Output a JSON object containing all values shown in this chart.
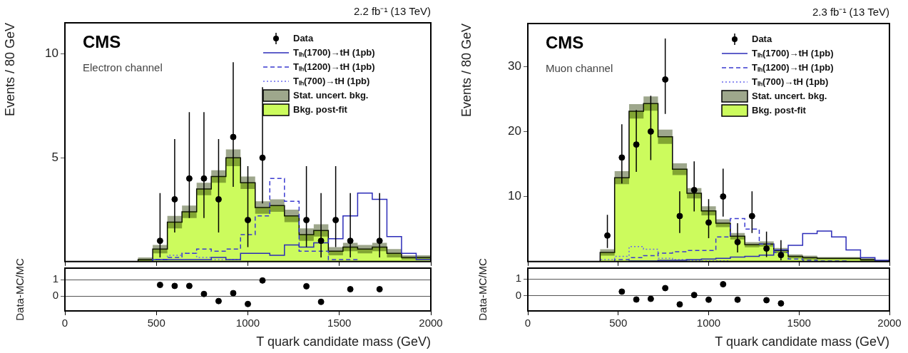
{
  "chart_data": [
    {
      "type": "histogram",
      "subtitle": "2.2 fb⁻¹ (13 TeV)",
      "ylabel": "Events / 80 GeV",
      "annotations": [
        "CMS",
        "Electron channel"
      ],
      "bins": [
        0,
        80,
        160,
        240,
        320,
        400,
        480,
        560,
        640,
        720,
        800,
        880,
        960,
        1040,
        1120,
        1200,
        1280,
        1360,
        1440,
        1520,
        1600,
        1680,
        1760,
        1840,
        1920,
        2000
      ],
      "xlim": [
        0,
        2000
      ],
      "xticks": [
        0,
        500,
        1000,
        1500,
        2000
      ],
      "ylim": [
        0,
        11.5
      ],
      "yticks": [
        5,
        10
      ],
      "tick_labels": "y",
      "legend": "top right",
      "marker": "circle",
      "series": [
        {
          "name": "Data",
          "type": "scatter",
          "color": "#000000",
          "x": [
            520,
            600,
            680,
            760,
            840,
            920,
            1000,
            1080,
            1320,
            1400,
            1480,
            1560,
            1720
          ],
          "values": [
            1,
            3,
            4,
            4,
            3,
            6,
            2,
            5,
            2,
            1,
            2,
            1,
            1
          ],
          "errors": [
            [
              0.2,
              3.3
            ],
            [
              1.4,
              5.9
            ],
            [
              2.1,
              7.2
            ],
            [
              2.1,
              7.2
            ],
            [
              1.4,
              5.9
            ],
            [
              3.6,
              9.6
            ],
            [
              0.7,
              4.6
            ],
            [
              2.8,
              8.4
            ],
            [
              0.7,
              4.6
            ],
            [
              0.2,
              3.3
            ],
            [
              0.7,
              4.6
            ],
            [
              0.2,
              3.3
            ],
            [
              0.2,
              3.3
            ]
          ]
        },
        {
          "name": "Tₗₕ(1700)→tH (1pb)",
          "type": "histogram",
          "color": "#2b2bb8",
          "line_style": "solid",
          "values": [
            0,
            0,
            0,
            0,
            0,
            0,
            0.1,
            0.1,
            0.1,
            0.1,
            0.2,
            0.1,
            0.4,
            0.4,
            0.3,
            0.8,
            0.7,
            0.9,
            1.1,
            2.2,
            3.3,
            3.0,
            1.2,
            0.4,
            0.1
          ]
        },
        {
          "name": "Tₗₕ(1200)→tH (1pb)",
          "type": "histogram",
          "color": "#3a3ad0",
          "line_style": "dashed",
          "values": [
            0,
            0,
            0,
            0,
            0,
            0,
            0.1,
            0.2,
            0.4,
            0.6,
            0.5,
            0.6,
            1.3,
            2.2,
            4.0,
            2.9,
            0.5,
            0.5,
            0.1,
            0.1,
            0,
            0,
            0,
            0,
            0
          ]
        },
        {
          "name": "Tₗₕ(700)→tH (1pb)",
          "type": "histogram",
          "color": "#6a6aee",
          "line_style": "dotted",
          "values": [
            0,
            0,
            0,
            0,
            0,
            0,
            0.1,
            0.3,
            0.4,
            0.2,
            0.1,
            0.1,
            0,
            0,
            0,
            0,
            0,
            0,
            0,
            0,
            0,
            0,
            0,
            0,
            0
          ]
        },
        {
          "name": "Stat. uncert. bkg.",
          "type": "line",
          "color": "#283c00",
          "x": [
            400,
            480,
            480,
            560,
            560,
            640,
            640,
            720,
            720,
            800,
            800,
            880,
            880,
            960,
            960,
            1040,
            1040,
            1120,
            1120,
            1200,
            1200,
            1280,
            1280,
            1360,
            1360,
            1440,
            1440,
            1520,
            1520,
            1600,
            1600,
            1680,
            1680,
            1760,
            1760,
            1840,
            1840,
            1920,
            1920,
            2000
          ],
          "values": [
            null,
            null,
            null,
            null,
            null,
            null,
            null,
            null,
            null,
            null,
            null,
            null,
            null,
            null,
            null,
            null,
            null,
            null,
            null,
            null,
            null,
            null,
            null,
            null,
            null,
            null,
            null,
            null,
            null,
            null,
            null,
            null,
            null,
            null,
            null,
            null,
            null,
            null,
            null,
            null
          ],
          "lower": [
            0,
            0,
            0.4,
            0.4,
            1.6,
            1.6,
            2.1,
            2.1,
            3.2,
            3.2,
            3.8,
            3.8,
            4.6,
            4.6,
            3.5,
            3.5,
            2.3,
            2.3,
            2.4,
            2.4,
            1.9,
            1.9,
            1.0,
            1.0,
            1.2,
            1.2,
            0.3,
            0.3,
            0.5,
            0.5,
            0.4,
            0.4,
            0.5,
            0.5,
            0.2,
            0.2,
            0.1,
            0.1,
            0.1,
            0.1
          ],
          "upper": [
            0.2,
            0.2,
            0.8,
            0.8,
            2.2,
            2.2,
            2.7,
            2.7,
            3.8,
            3.8,
            4.4,
            4.4,
            5.4,
            5.4,
            4.1,
            4.1,
            2.9,
            2.9,
            3.0,
            3.0,
            2.5,
            2.5,
            1.6,
            1.6,
            1.8,
            1.8,
            0.7,
            0.7,
            0.9,
            0.9,
            0.8,
            0.8,
            0.9,
            0.9,
            0.6,
            0.6,
            0.3,
            0.3,
            0.3,
            0.3
          ]
        },
        {
          "name": "Bkg. post-fit",
          "type": "histogram",
          "color": "#ccfb5d",
          "values": [
            0,
            0,
            0,
            0,
            0,
            0.1,
            0.6,
            1.9,
            2.4,
            3.5,
            4.1,
            5.0,
            3.8,
            2.6,
            2.7,
            2.2,
            1.3,
            1.5,
            0.5,
            0.7,
            0.6,
            0.7,
            0.4,
            0.2,
            0.2
          ]
        }
      ]
    },
    {
      "type": "scatter",
      "xlabel": "T quark candidate mass (GeV)",
      "ylabel": "Data-MC/MC",
      "xlim": [
        0,
        2000
      ],
      "xticks": [
        0,
        500,
        1000,
        1500,
        2000
      ],
      "ylim": [
        -0.9,
        1.7
      ],
      "yticks": [
        0,
        1
      ],
      "grid": "y",
      "marker": "circle",
      "color": "#000000",
      "x": [
        520,
        600,
        680,
        760,
        840,
        920,
        1000,
        1080,
        1320,
        1400,
        1560,
        1720
      ],
      "values": [
        0.68,
        0.62,
        0.62,
        0.13,
        -0.3,
        0.18,
        -0.48,
        0.95,
        0.6,
        -0.35,
        0.42,
        0.42
      ]
    },
    {
      "type": "histogram",
      "subtitle": "2.3 fb⁻¹ (13 TeV)",
      "ylabel": "Events / 80 GeV",
      "annotations": [
        "CMS",
        "Muon channel"
      ],
      "bins": [
        0,
        80,
        160,
        240,
        320,
        400,
        480,
        560,
        640,
        720,
        800,
        880,
        960,
        1040,
        1120,
        1200,
        1280,
        1360,
        1440,
        1520,
        1600,
        1680,
        1760,
        1840,
        1920,
        2000
      ],
      "xlim": [
        0,
        2000
      ],
      "xticks": [
        0,
        500,
        1000,
        1500,
        2000
      ],
      "ylim": [
        0,
        36.6
      ],
      "yticks": [
        10,
        20,
        30
      ],
      "tick_labels": "y",
      "legend": "top right",
      "marker": "circle",
      "series": [
        {
          "name": "Data",
          "type": "scatter",
          "color": "#000000",
          "x": [
            440,
            520,
            600,
            680,
            760,
            840,
            920,
            1000,
            1080,
            1160,
            1240,
            1320,
            1400
          ],
          "values": [
            4,
            16,
            18,
            20,
            28,
            7,
            11,
            6,
            10,
            3,
            7,
            2,
            1
          ],
          "errors": [
            [
              2.1,
              7.2
            ],
            [
              12.0,
              21.1
            ],
            [
              13.8,
              23.3
            ],
            [
              15.6,
              25.5
            ],
            [
              22.7,
              34.3
            ],
            [
              4.4,
              10.8
            ],
            [
              7.7,
              15.4
            ],
            [
              3.6,
              9.6
            ],
            [
              6.9,
              14.3
            ],
            [
              1.4,
              5.9
            ],
            [
              4.4,
              10.8
            ],
            [
              0.7,
              4.6
            ],
            [
              0.2,
              3.3
            ]
          ]
        },
        {
          "name": "Tₗₕ(1700)→tH (1pb)",
          "type": "histogram",
          "color": "#2b2bb8",
          "line_style": "solid",
          "values": [
            0,
            0,
            0,
            0,
            0,
            0,
            0,
            0.1,
            0.1,
            0.2,
            0.2,
            0.3,
            0.4,
            0.5,
            0.7,
            0.8,
            1.0,
            1.8,
            2.5,
            4.3,
            4.7,
            3.8,
            1.8,
            0.6,
            0.2
          ]
        },
        {
          "name": "Tₗₕ(1200)→tH (1pb)",
          "type": "histogram",
          "color": "#3a3ad0",
          "line_style": "dashed",
          "values": [
            0,
            0,
            0,
            0,
            0,
            0,
            0.3,
            0.6,
            0.9,
            1.3,
            1.5,
            1.7,
            1.7,
            3.8,
            6.6,
            5.0,
            2.7,
            1.4,
            0.4,
            0.2,
            0.1,
            0.1,
            0,
            0,
            0
          ]
        },
        {
          "name": "Tₗₕ(700)→tH (1pb)",
          "type": "histogram",
          "color": "#6a6aee",
          "line_style": "dotted",
          "values": [
            0,
            0,
            0,
            0,
            0,
            0.3,
            0.8,
            2.3,
            1.9,
            0.5,
            0.3,
            0.2,
            0.1,
            0.1,
            0,
            0,
            0,
            0,
            0,
            0,
            0,
            0,
            0,
            0,
            0
          ]
        },
        {
          "name": "Stat. uncert. bkg.",
          "type": "line",
          "color": "#283c00",
          "x": [
            400,
            480,
            480,
            560,
            560,
            640,
            640,
            720,
            720,
            800,
            800,
            880,
            880,
            960,
            960,
            1040,
            1040,
            1120,
            1120,
            1200,
            1200,
            1280,
            1280,
            1360,
            1360,
            1440,
            1440,
            1520,
            1520,
            1600,
            1600,
            1680,
            1680,
            1760,
            1760,
            1840,
            1840,
            1920,
            1920,
            2000
          ],
          "values": [
            null,
            null,
            null,
            null,
            null,
            null,
            null,
            null,
            null,
            null,
            null,
            null,
            null,
            null,
            null,
            null,
            null,
            null,
            null,
            null,
            null,
            null,
            null,
            null,
            null,
            null,
            null,
            null,
            null,
            null,
            null,
            null,
            null,
            null,
            null,
            null,
            null,
            null,
            null,
            null
          ],
          "lower": [
            0.9,
            0.9,
            11.9,
            11.9,
            22.0,
            22.0,
            23.2,
            23.2,
            18.1,
            18.1,
            13.3,
            13.3,
            9.7,
            9.7,
            7.1,
            7.1,
            5.3,
            5.3,
            3.4,
            3.4,
            2.2,
            2.2,
            2.3,
            2.3,
            1.3,
            1.3,
            0.5,
            0.5,
            0.3,
            0.3,
            0.3,
            0.3,
            0.3,
            0.3,
            0.3,
            0.3,
            0.1,
            0.1,
            0,
            0
          ],
          "upper": [
            1.9,
            1.9,
            13.9,
            13.9,
            24.2,
            24.2,
            25.4,
            25.4,
            20.3,
            20.3,
            15.1,
            15.1,
            11.3,
            11.3,
            8.5,
            8.5,
            6.5,
            6.5,
            4.4,
            4.4,
            3.0,
            3.0,
            3.1,
            3.1,
            2.1,
            2.1,
            1.1,
            1.1,
            0.9,
            0.9,
            0.7,
            0.7,
            0.7,
            0.7,
            0.7,
            0.7,
            0.5,
            0.5,
            0.2,
            0.2
          ]
        },
        {
          "name": "Bkg. post-fit",
          "type": "histogram",
          "color": "#ccfb5d",
          "values": [
            0,
            0,
            0,
            0,
            0,
            1.4,
            12.9,
            23.1,
            24.3,
            19.2,
            14.2,
            10.5,
            7.8,
            5.9,
            3.9,
            2.6,
            2.7,
            1.7,
            0.8,
            0.6,
            0.5,
            0.5,
            0.5,
            0.3,
            0.1
          ]
        }
      ]
    },
    {
      "type": "scatter",
      "xlabel": "T quark candidate mass (GeV)",
      "ylabel": "Data-MC/MC",
      "xlim": [
        0,
        2000
      ],
      "xticks": [
        0,
        500,
        1000,
        1500,
        2000
      ],
      "ylim": [
        -0.9,
        1.65
      ],
      "yticks": [
        0,
        1
      ],
      "grid": "y",
      "marker": "circle",
      "color": "#000000",
      "x": [
        520,
        600,
        680,
        760,
        840,
        920,
        1000,
        1080,
        1160,
        1320,
        1400
      ],
      "values": [
        0.25,
        -0.22,
        -0.18,
        0.46,
        -0.51,
        0.05,
        -0.23,
        0.69,
        -0.23,
        -0.26,
        -0.45
      ]
    }
  ]
}
